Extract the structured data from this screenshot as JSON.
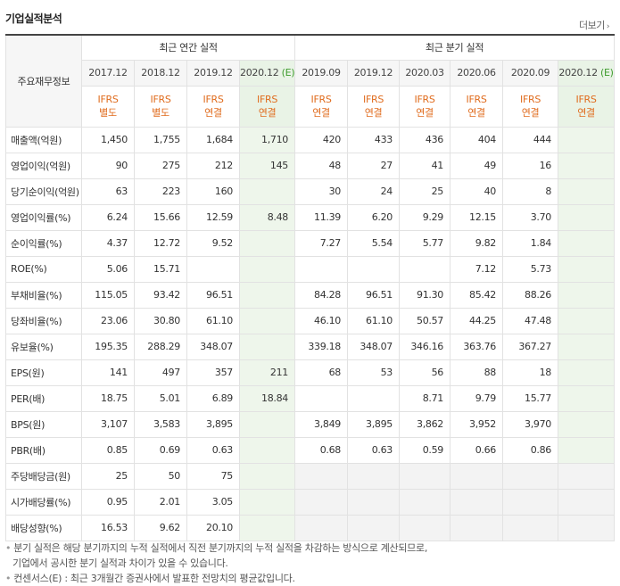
{
  "section": {
    "title": "기업실적분석",
    "more_label": "더보기"
  },
  "table": {
    "row_header_label": "주요재무정보",
    "annual_group_label": "최근 연간 실적",
    "quarter_group_label": "최근 분기 실적",
    "estimate_mark": "(E)",
    "annual_periods": [
      {
        "date": "2017.12",
        "est": false,
        "ifrs1": "IFRS",
        "ifrs2": "별도"
      },
      {
        "date": "2018.12",
        "est": false,
        "ifrs1": "IFRS",
        "ifrs2": "별도"
      },
      {
        "date": "2019.12",
        "est": false,
        "ifrs1": "IFRS",
        "ifrs2": "연결"
      },
      {
        "date": "2020.12",
        "est": true,
        "ifrs1": "IFRS",
        "ifrs2": "연결"
      }
    ],
    "quarter_periods": [
      {
        "date": "2019.09",
        "est": false,
        "ifrs1": "IFRS",
        "ifrs2": "연결"
      },
      {
        "date": "2019.12",
        "est": false,
        "ifrs1": "IFRS",
        "ifrs2": "연결"
      },
      {
        "date": "2020.03",
        "est": false,
        "ifrs1": "IFRS",
        "ifrs2": "연결"
      },
      {
        "date": "2020.06",
        "est": false,
        "ifrs1": "IFRS",
        "ifrs2": "연결"
      },
      {
        "date": "2020.09",
        "est": false,
        "ifrs1": "IFRS",
        "ifrs2": "연결"
      },
      {
        "date": "2020.12",
        "est": true,
        "ifrs1": "IFRS",
        "ifrs2": "연결"
      }
    ],
    "rows": [
      {
        "label": "매출액(억원)",
        "sep": false,
        "annual": [
          "1,450",
          "1,755",
          "1,684",
          "1,710"
        ],
        "quarter": [
          "420",
          "433",
          "436",
          "404",
          "444",
          ""
        ]
      },
      {
        "label": "영업이익(억원)",
        "sep": false,
        "annual": [
          "90",
          "275",
          "212",
          "145"
        ],
        "quarter": [
          "48",
          "27",
          "41",
          "49",
          "16",
          ""
        ]
      },
      {
        "label": "당기순이익(억원)",
        "sep": false,
        "annual": [
          "63",
          "223",
          "160",
          ""
        ],
        "quarter": [
          "30",
          "24",
          "25",
          "40",
          "8",
          ""
        ]
      },
      {
        "label": "영업이익률(%)",
        "sep": true,
        "annual": [
          "6.24",
          "15.66",
          "12.59",
          "8.48"
        ],
        "quarter": [
          "11.39",
          "6.20",
          "9.29",
          "12.15",
          "3.70",
          ""
        ]
      },
      {
        "label": "순이익률(%)",
        "sep": false,
        "annual": [
          "4.37",
          "12.72",
          "9.52",
          ""
        ],
        "quarter": [
          "7.27",
          "5.54",
          "5.77",
          "9.82",
          "1.84",
          ""
        ]
      },
      {
        "label": "ROE(%)",
        "sep": false,
        "annual": [
          "5.06",
          "15.71",
          "",
          ""
        ],
        "quarter": [
          "",
          "",
          "",
          "7.12",
          "5.73",
          ""
        ]
      },
      {
        "label": "부채비율(%)",
        "sep": true,
        "annual": [
          "115.05",
          "93.42",
          "96.51",
          ""
        ],
        "quarter": [
          "84.28",
          "96.51",
          "91.30",
          "85.42",
          "88.26",
          ""
        ]
      },
      {
        "label": "당좌비율(%)",
        "sep": false,
        "annual": [
          "23.06",
          "30.80",
          "61.10",
          ""
        ],
        "quarter": [
          "46.10",
          "61.10",
          "50.57",
          "44.25",
          "47.48",
          ""
        ]
      },
      {
        "label": "유보율(%)",
        "sep": false,
        "annual": [
          "195.35",
          "288.29",
          "348.07",
          ""
        ],
        "quarter": [
          "339.18",
          "348.07",
          "346.16",
          "363.76",
          "367.27",
          ""
        ]
      },
      {
        "label": "EPS(원)",
        "sep": true,
        "annual": [
          "141",
          "497",
          "357",
          "211"
        ],
        "quarter": [
          "68",
          "53",
          "56",
          "88",
          "18",
          ""
        ]
      },
      {
        "label": "PER(배)",
        "sep": false,
        "annual": [
          "18.75",
          "5.01",
          "6.89",
          "18.84"
        ],
        "quarter": [
          "",
          "",
          "8.71",
          "9.79",
          "15.77",
          ""
        ]
      },
      {
        "label": "BPS(원)",
        "sep": false,
        "annual": [
          "3,107",
          "3,583",
          "3,895",
          ""
        ],
        "quarter": [
          "3,849",
          "3,895",
          "3,862",
          "3,952",
          "3,970",
          ""
        ]
      },
      {
        "label": "PBR(배)",
        "sep": false,
        "annual": [
          "0.85",
          "0.69",
          "0.63",
          ""
        ],
        "quarter": [
          "0.68",
          "0.63",
          "0.59",
          "0.66",
          "0.86",
          ""
        ]
      },
      {
        "label": "주당배당금(원)",
        "sep": true,
        "shade_quarter": true,
        "annual": [
          "25",
          "50",
          "75",
          ""
        ],
        "quarter": [
          "",
          "",
          "",
          "",
          "",
          ""
        ]
      },
      {
        "label": "시가배당률(%)",
        "sep": false,
        "shade_quarter": true,
        "annual": [
          "0.95",
          "2.01",
          "3.05",
          ""
        ],
        "quarter": [
          "",
          "",
          "",
          "",
          "",
          ""
        ]
      },
      {
        "label": "배당성향(%)",
        "sep": false,
        "shade_quarter": true,
        "annual": [
          "16.53",
          "9.62",
          "20.10",
          ""
        ],
        "quarter": [
          "",
          "",
          "",
          "",
          "",
          ""
        ]
      }
    ]
  },
  "notes": {
    "bullet": "•",
    "line1": "분기 실적은 해당 분기까지의 누적 실적에서 직전 분기까지의 누적 실적을 차감하는 방식으로 계산되므로,",
    "line2": "기업에서 공시한 분기 실적과 차이가 있을 수 있습니다.",
    "line3": "컨센서스(E) : 최근 3개월간 증권사에서 발표한 전망치의 평균값입니다."
  },
  "colors": {
    "ifrs_text": "#e06c1e",
    "estimate_mark": "#3f9c2e",
    "estimate_bg": "#eef6eb"
  }
}
